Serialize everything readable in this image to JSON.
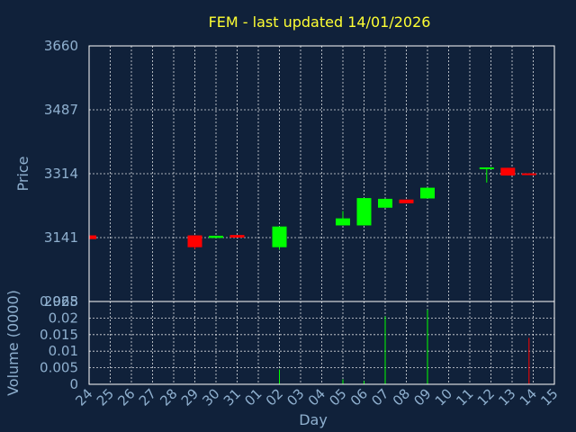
{
  "chart_data": {
    "type": "candlestick",
    "title": "FEM - last updated 14/01/2026",
    "xlabel": "Day",
    "price_panel": {
      "ylabel": "Price",
      "ylim": [
        2968,
        3660
      ],
      "yticks": [
        2968,
        3141,
        3314,
        3487,
        3660
      ],
      "grid": true
    },
    "volume_panel": {
      "ylabel": "Volume (0000)",
      "ylim": [
        0,
        0.025
      ],
      "yticks": [
        0,
        0.005,
        0.01,
        0.015,
        0.02,
        0.025
      ],
      "ytick_labels": [
        "0",
        "0.005",
        "0.01",
        "0.015",
        "0.02",
        "0.025"
      ],
      "grid": true
    },
    "x_labels": [
      "24",
      "25",
      "26",
      "27",
      "28",
      "29",
      "30",
      "31",
      "01",
      "02",
      "03",
      "04",
      "05",
      "06",
      "07",
      "08",
      "09",
      "10",
      "11",
      "12",
      "13",
      "14",
      "15"
    ],
    "colors": {
      "up": "#00ff00",
      "down": "#ff0000"
    },
    "candles": [
      {
        "x": 0,
        "open": 3147,
        "close": 3137,
        "high": 3147,
        "low": 3137,
        "volume": 0
      },
      {
        "x": 5,
        "open": 3147,
        "close": 3115,
        "high": 3147,
        "low": 3110,
        "volume": 0
      },
      {
        "x": 6,
        "open": 3140,
        "close": 3146,
        "high": 3146,
        "low": 3140,
        "volume": 0
      },
      {
        "x": 7,
        "open": 3148,
        "close": 3141,
        "high": 3148,
        "low": 3141,
        "volume": 0
      },
      {
        "x": 9,
        "open": 3115,
        "close": 3171,
        "high": 3171,
        "low": 3108,
        "volume": 0.0045
      },
      {
        "x": 12,
        "open": 3174,
        "close": 3193,
        "high": 3213,
        "low": 3174,
        "volume": 0.0015
      },
      {
        "x": 13,
        "open": 3174,
        "close": 3248,
        "high": 3248,
        "low": 3174,
        "volume": 0.001
      },
      {
        "x": 14,
        "open": 3222,
        "close": 3246,
        "high": 3246,
        "low": 3222,
        "volume": 0.0205
      },
      {
        "x": 15,
        "open": 3244,
        "close": 3234,
        "high": 3244,
        "low": 3234,
        "volume": 0
      },
      {
        "x": 16,
        "open": 3247,
        "close": 3276,
        "high": 3276,
        "low": 3247,
        "volume": 0.0225
      },
      {
        "x": 18.8,
        "open": 3328,
        "close": 3331,
        "high": 3331,
        "low": 3290,
        "volume": 0
      },
      {
        "x": 19.8,
        "open": 3330,
        "close": 3309,
        "high": 3330,
        "low": 3309,
        "volume": 0
      },
      {
        "x": 20.8,
        "open": 3315,
        "close": 3311,
        "high": 3315,
        "low": 3311,
        "volume": 0.014
      }
    ]
  }
}
